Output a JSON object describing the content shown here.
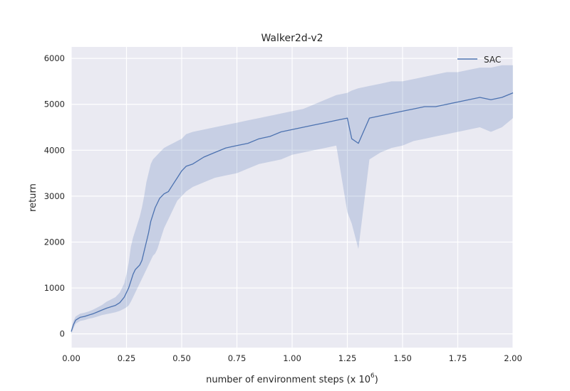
{
  "chart_data": {
    "type": "line",
    "title": "Walker2d-v2",
    "xlabel": "number of environment steps (x 10",
    "xlabel_superscript": "6",
    "xlabel_suffix": ")",
    "ylabel": "return",
    "xlim": [
      0,
      2
    ],
    "ylim": [
      -300,
      6250
    ],
    "x_ticks": [
      0.0,
      0.25,
      0.5,
      0.75,
      1.0,
      1.25,
      1.5,
      1.75,
      2.0
    ],
    "x_tick_labels": [
      "0.00",
      "0.25",
      "0.50",
      "0.75",
      "1.00",
      "1.25",
      "1.50",
      "1.75",
      "2.00"
    ],
    "y_ticks": [
      0,
      1000,
      2000,
      3000,
      4000,
      5000,
      6000
    ],
    "y_tick_labels": [
      "0",
      "1000",
      "2000",
      "3000",
      "4000",
      "5000",
      "6000"
    ],
    "grid": true,
    "legend_position": "top-right",
    "series": [
      {
        "name": "SAC",
        "color": "#4c72b0",
        "band_color": "#4c72b0",
        "x": [
          0.0,
          0.01,
          0.02,
          0.04,
          0.06,
          0.08,
          0.1,
          0.12,
          0.14,
          0.16,
          0.18,
          0.2,
          0.22,
          0.24,
          0.25,
          0.26,
          0.27,
          0.28,
          0.29,
          0.3,
          0.31,
          0.32,
          0.33,
          0.34,
          0.35,
          0.36,
          0.37,
          0.38,
          0.39,
          0.4,
          0.42,
          0.44,
          0.46,
          0.48,
          0.5,
          0.52,
          0.55,
          0.6,
          0.65,
          0.7,
          0.75,
          0.8,
          0.85,
          0.9,
          0.95,
          1.0,
          1.05,
          1.1,
          1.15,
          1.2,
          1.25,
          1.27,
          1.3,
          1.35,
          1.4,
          1.45,
          1.5,
          1.55,
          1.6,
          1.65,
          1.7,
          1.75,
          1.8,
          1.85,
          1.9,
          1.95,
          2.0
        ],
        "mean": [
          50,
          200,
          300,
          360,
          380,
          410,
          440,
          480,
          520,
          560,
          590,
          620,
          680,
          800,
          900,
          1000,
          1150,
          1300,
          1400,
          1450,
          1500,
          1600,
          1800,
          2000,
          2200,
          2450,
          2600,
          2750,
          2850,
          2950,
          3050,
          3100,
          3250,
          3400,
          3550,
          3650,
          3700,
          3850,
          3950,
          4050,
          4100,
          4150,
          4250,
          4300,
          4400,
          4450,
          4500,
          4550,
          4600,
          4650,
          4700,
          4250,
          4150,
          4700,
          4750,
          4800,
          4850,
          4900,
          4950,
          4950,
          5000,
          5050,
          5100,
          5150,
          5100,
          5150,
          5250
        ],
        "upper": [
          100,
          280,
          380,
          440,
          460,
          490,
          530,
          580,
          630,
          700,
          750,
          800,
          900,
          1100,
          1300,
          1550,
          1900,
          2100,
          2250,
          2400,
          2550,
          2750,
          3000,
          3300,
          3500,
          3700,
          3800,
          3850,
          3900,
          3950,
          4050,
          4100,
          4150,
          4200,
          4250,
          4350,
          4400,
          4450,
          4500,
          4550,
          4600,
          4650,
          4700,
          4750,
          4800,
          4850,
          4900,
          5000,
          5100,
          5200,
          5250,
          5300,
          5350,
          5400,
          5450,
          5500,
          5500,
          5550,
          5600,
          5650,
          5700,
          5700,
          5750,
          5800,
          5800,
          5850,
          5850
        ],
        "lower": [
          0,
          120,
          220,
          280,
          300,
          330,
          350,
          380,
          410,
          430,
          450,
          470,
          500,
          550,
          580,
          620,
          700,
          800,
          900,
          1000,
          1100,
          1200,
          1300,
          1400,
          1500,
          1600,
          1700,
          1750,
          1850,
          2000,
          2300,
          2500,
          2700,
          2900,
          3000,
          3100,
          3200,
          3300,
          3400,
          3450,
          3500,
          3600,
          3700,
          3750,
          3800,
          3900,
          3950,
          4000,
          4050,
          4100,
          2650,
          2400,
          1850,
          3800,
          3950,
          4050,
          4100,
          4200,
          4250,
          4300,
          4350,
          4400,
          4450,
          4500,
          4400,
          4500,
          4700
        ]
      }
    ]
  }
}
